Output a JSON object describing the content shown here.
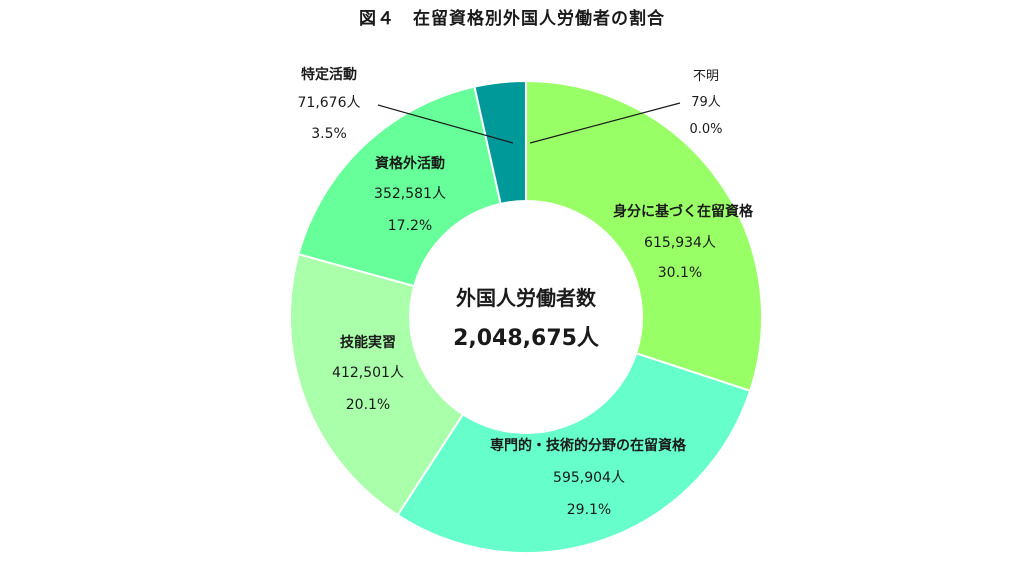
{
  "chart_data": {
    "type": "pie",
    "title": "図４　在留資格別外国人労働者の割合",
    "center_label": "外国人労働者数",
    "center_total": "2,048,675人",
    "slices": [
      {
        "label": "身分に基づく在留資格",
        "count": "615,934人",
        "percent": "30.1%",
        "value": 615934,
        "color": "#99ff66"
      },
      {
        "label": "専門的・技術的分野の在留資格",
        "count": "595,904人",
        "percent": "29.1%",
        "value": 595904,
        "color": "#66ffcc"
      },
      {
        "label": "技能実習",
        "count": "412,501人",
        "percent": "20.1%",
        "value": 412501,
        "color": "#aaffaa"
      },
      {
        "label": "資格外活動",
        "count": "352,581人",
        "percent": "17.2%",
        "value": 352581,
        "color": "#66ff99"
      },
      {
        "label": "特定活動",
        "count": "71,676人",
        "percent": "3.5%",
        "value": 71676,
        "color": "#009999"
      },
      {
        "label": "不明",
        "count": "79人",
        "percent": "0.0%",
        "value": 79,
        "color": "#ccffcc"
      }
    ]
  }
}
